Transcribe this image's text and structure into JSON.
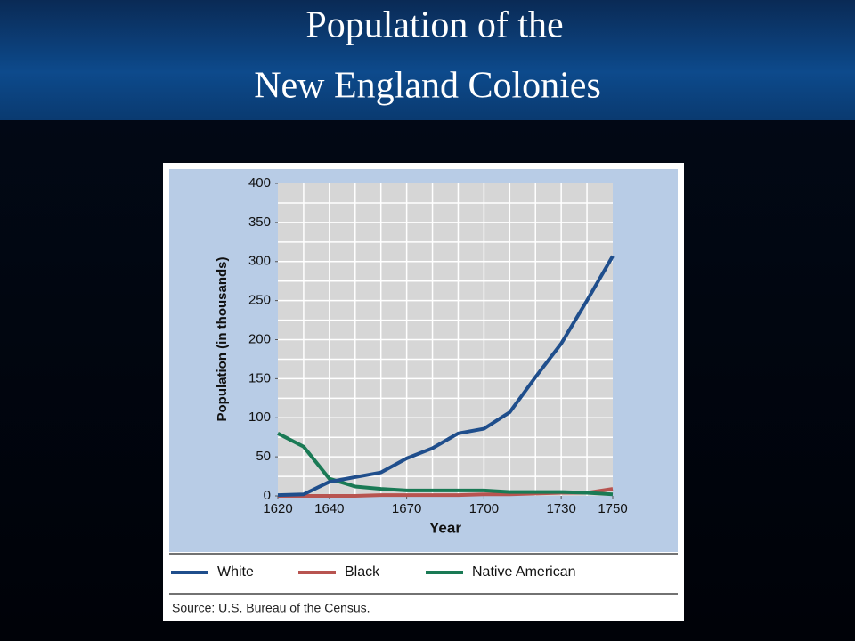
{
  "chart_data": {
    "type": "line",
    "title_lines": [
      "Population of the",
      "New England Colonies"
    ],
    "xlabel": "Year",
    "ylabel": "Population (in thousands)",
    "source": "Source: U.S. Bureau of the Census.",
    "x": [
      1620,
      1630,
      1640,
      1650,
      1660,
      1670,
      1680,
      1690,
      1700,
      1710,
      1720,
      1730,
      1740,
      1750
    ],
    "series": [
      {
        "name": "White",
        "color": "#1f4e8c",
        "values": [
          1,
          2,
          18,
          24,
          30,
          48,
          61,
          80,
          86,
          107,
          152,
          195,
          250,
          307
        ]
      },
      {
        "name": "Black",
        "color": "#b85450",
        "values": [
          0,
          0,
          0,
          0,
          1,
          1,
          1,
          1,
          2,
          2,
          3,
          4,
          4,
          9
        ]
      },
      {
        "name": "Native American",
        "color": "#1a7a55",
        "values": [
          80,
          63,
          22,
          12,
          9,
          7,
          7,
          7,
          7,
          5,
          5,
          5,
          4,
          2
        ]
      }
    ],
    "xlim": [
      1620,
      1750
    ],
    "xticks": [
      1620,
      1640,
      1670,
      1700,
      1730,
      1750
    ],
    "ylim": [
      0,
      400
    ],
    "yticks": [
      0,
      50,
      100,
      150,
      200,
      250,
      300,
      350,
      400
    ],
    "xgrid": [
      1630,
      1640,
      1650,
      1660,
      1670,
      1680,
      1690,
      1700,
      1710,
      1720,
      1730,
      1740
    ],
    "ygrid": [
      25,
      50,
      75,
      100,
      125,
      150,
      175,
      200,
      225,
      250,
      275,
      300,
      325,
      350,
      375
    ],
    "grid": true,
    "legend": "bottom"
  }
}
